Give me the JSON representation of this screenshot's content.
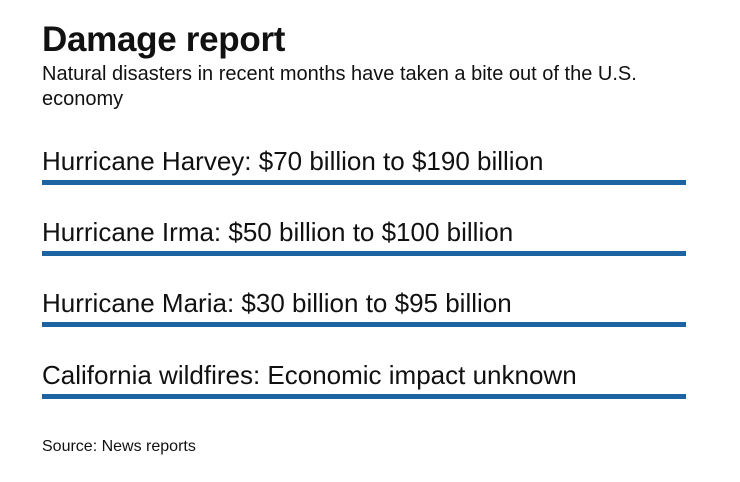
{
  "header": {
    "title": "Damage report",
    "subtitle": "Natural disasters in recent months have taken a bite out of the U.S. economy"
  },
  "items": [
    "Hurricane Harvey: $70 billion to $190 billion",
    "Hurricane Irma: $50 billion to $100 billion",
    "Hurricane Maria: $30 billion to $95 billion",
    "California wildfires: Economic impact unknown"
  ],
  "source": "Source: News reports"
}
